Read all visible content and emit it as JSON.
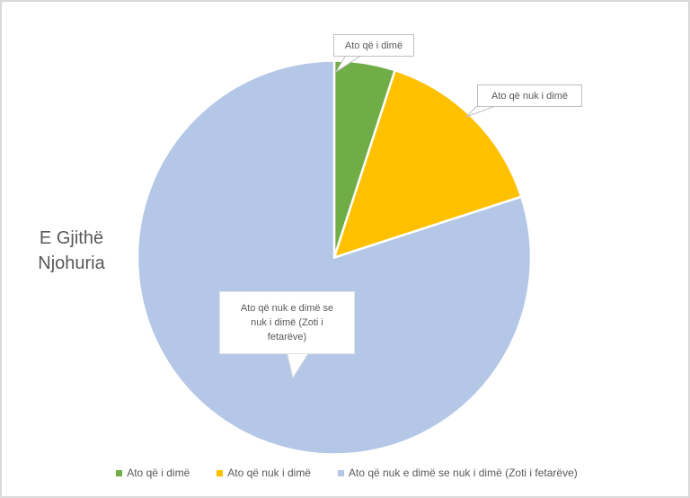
{
  "window": {
    "background": "#ffffff",
    "frame_border_color": "#d9d9d9",
    "text_color": "#595959"
  },
  "chart_data": {
    "type": "pie",
    "title": "E Gjithë Njohuria",
    "unit": "percent (estimated from slice angles)",
    "start_angle_deg": 0,
    "direction": "clockwise",
    "legend_position": "bottom",
    "data_labels_style": "callout boxes pointing to slices",
    "slices": [
      {
        "label": "Ato që i dimë",
        "value": 5,
        "color": "#70AD47"
      },
      {
        "label": "Ato që nuk i dimë",
        "value": 15,
        "color": "#FFC000"
      },
      {
        "label": "Ato që nuk e dimë se nuk i dimë (Zoti i fetarëve)",
        "value": 80,
        "color": "#B4C7E7"
      }
    ]
  }
}
